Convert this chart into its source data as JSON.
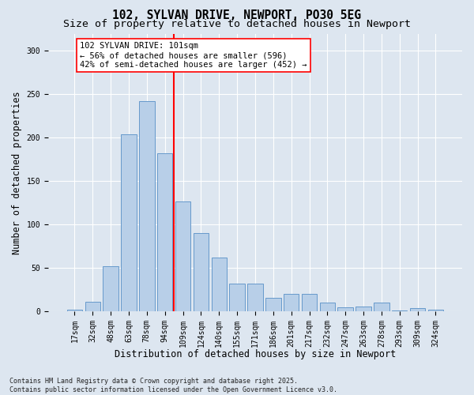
{
  "title_line1": "102, SYLVAN DRIVE, NEWPORT, PO30 5EG",
  "title_line2": "Size of property relative to detached houses in Newport",
  "xlabel": "Distribution of detached houses by size in Newport",
  "ylabel": "Number of detached properties",
  "categories": [
    "17sqm",
    "32sqm",
    "48sqm",
    "63sqm",
    "78sqm",
    "94sqm",
    "109sqm",
    "124sqm",
    "140sqm",
    "155sqm",
    "171sqm",
    "186sqm",
    "201sqm",
    "217sqm",
    "232sqm",
    "247sqm",
    "263sqm",
    "278sqm",
    "293sqm",
    "309sqm",
    "324sqm"
  ],
  "values": [
    2,
    11,
    52,
    204,
    242,
    182,
    127,
    90,
    62,
    32,
    32,
    16,
    20,
    20,
    10,
    5,
    6,
    10,
    1,
    4,
    2
  ],
  "bar_color": "#b8cfe8",
  "bar_edge_color": "#6699cc",
  "vline_color": "red",
  "annotation_text": "102 SYLVAN DRIVE: 101sqm\n← 56% of detached houses are smaller (596)\n42% of semi-detached houses are larger (452) →",
  "annotation_box_color": "white",
  "annotation_box_edge_color": "red",
  "ylim": [
    0,
    320
  ],
  "yticks": [
    0,
    50,
    100,
    150,
    200,
    250,
    300
  ],
  "background_color": "#dde6f0",
  "footnote1": "Contains HM Land Registry data © Crown copyright and database right 2025.",
  "footnote2": "Contains public sector information licensed under the Open Government Licence v3.0.",
  "title_fontsize": 10.5,
  "subtitle_fontsize": 9.5,
  "axis_label_fontsize": 8.5,
  "tick_fontsize": 7,
  "annotation_fontsize": 7.5,
  "footnote_fontsize": 6
}
